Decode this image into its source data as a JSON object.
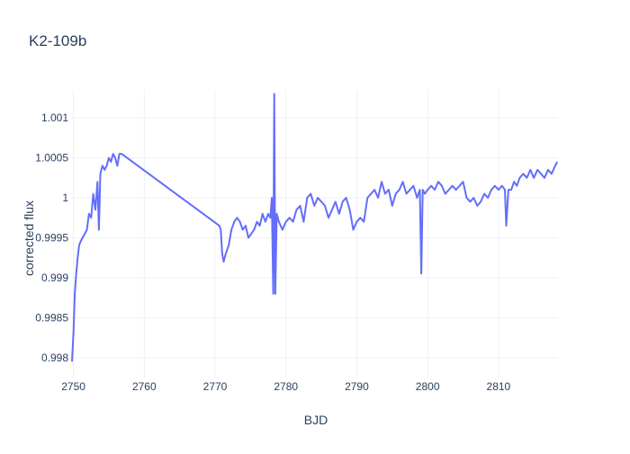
{
  "chart_data": {
    "type": "line",
    "title": "K2-109b",
    "xlabel": "BJD",
    "ylabel": "corrected flux",
    "xlim": [
      2749.8,
      2818.4
    ],
    "ylim": [
      0.99775,
      1.00135
    ],
    "xticks": [
      2750,
      2760,
      2770,
      2780,
      2790,
      2800,
      2810
    ],
    "xtick_labels": [
      "2750",
      "2760",
      "2770",
      "2780",
      "2790",
      "2800",
      "2810"
    ],
    "yticks": [
      0.998,
      0.9985,
      0.999,
      0.9995,
      1.0,
      1.0005,
      1.001
    ],
    "ytick_labels": [
      "0.998",
      "0.9985",
      "0.999",
      "0.9995",
      "1",
      "1.0005",
      "1.001"
    ],
    "grid": true,
    "series": [
      {
        "color": "#636efa",
        "x": [
          2749.8,
          2750.0,
          2750.2,
          2750.4,
          2750.6,
          2750.8,
          2751.0,
          2751.3,
          2751.6,
          2751.9,
          2752.2,
          2752.5,
          2752.8,
          2753.1,
          2753.4,
          2753.6,
          2753.8,
          2754.1,
          2754.4,
          2754.7,
          2755.0,
          2755.3,
          2755.6,
          2755.9,
          2756.2,
          2756.5,
          2756.8,
          2770.6,
          2770.8,
          2771.0,
          2771.2,
          2771.5,
          2771.9,
          2772.3,
          2772.7,
          2773.1,
          2773.5,
          2773.9,
          2774.3,
          2774.7,
          2775.1,
          2775.5,
          2775.9,
          2776.3,
          2776.7,
          2777.1,
          2777.5,
          2777.8,
          2778.0,
          2778.2,
          2778.35,
          2778.5,
          2778.7,
          2779.0,
          2779.5,
          2780.0,
          2780.5,
          2781.0,
          2781.5,
          2782.0,
          2782.5,
          2783.0,
          2783.5,
          2784.0,
          2784.5,
          2785.0,
          2785.5,
          2786.0,
          2786.5,
          2787.0,
          2787.5,
          2788.0,
          2788.5,
          2789.0,
          2789.5,
          2790.0,
          2790.5,
          2791.0,
          2791.5,
          2792.0,
          2792.5,
          2793.0,
          2793.5,
          2794.0,
          2794.5,
          2795.0,
          2795.5,
          2796.0,
          2796.5,
          2797.0,
          2797.5,
          2798.0,
          2798.5,
          2798.9,
          2799.1,
          2799.3,
          2799.6,
          2800.0,
          2800.5,
          2801.0,
          2801.5,
          2802.0,
          2802.5,
          2803.0,
          2803.5,
          2804.0,
          2804.5,
          2805.0,
          2805.5,
          2806.0,
          2806.5,
          2807.0,
          2807.5,
          2808.0,
          2808.5,
          2809.0,
          2809.5,
          2810.0,
          2810.5,
          2810.9,
          2811.1,
          2811.4,
          2811.8,
          2812.2,
          2812.6,
          2813.0,
          2813.5,
          2814.0,
          2814.5,
          2815.0,
          2815.5,
          2816.0,
          2816.5,
          2817.0,
          2817.5,
          2818.0,
          2818.3
        ],
        "y": [
          0.99795,
          0.9983,
          0.9988,
          0.99905,
          0.99925,
          0.9994,
          0.99945,
          0.9995,
          0.99955,
          0.9996,
          0.9998,
          0.99975,
          1.00005,
          0.99985,
          1.0002,
          0.9996,
          1.0003,
          1.0004,
          1.00035,
          1.0004,
          1.0005,
          1.00045,
          1.00055,
          1.0005,
          1.0004,
          1.00055,
          1.00055,
          0.99965,
          0.9996,
          0.9993,
          0.9992,
          0.9993,
          0.9994,
          0.9996,
          0.9997,
          0.99975,
          0.9997,
          0.9996,
          0.99965,
          0.9995,
          0.99955,
          0.9996,
          0.9997,
          0.99965,
          0.9998,
          0.9997,
          0.9998,
          0.99975,
          1.0,
          0.9988,
          1.0013,
          0.9988,
          0.9998,
          0.9997,
          0.9996,
          0.9997,
          0.99975,
          0.9997,
          0.99985,
          0.9999,
          0.9997,
          1.0,
          1.00005,
          0.9999,
          1.0,
          0.99995,
          0.9999,
          0.99975,
          0.99985,
          0.99995,
          0.9998,
          0.99995,
          1.0,
          0.99985,
          0.9996,
          0.9997,
          0.99975,
          0.9997,
          1.0,
          1.00005,
          1.0001,
          1.0,
          1.0002,
          1.00005,
          1.0001,
          0.9999,
          1.00005,
          1.0001,
          1.0002,
          1.00005,
          1.0001,
          1.00015,
          1.0,
          1.0001,
          0.99905,
          1.0001,
          1.00005,
          1.0001,
          1.00015,
          1.0001,
          1.0002,
          1.00015,
          1.00005,
          1.0001,
          1.00015,
          1.0001,
          1.00015,
          1.0002,
          1.0,
          0.99995,
          1.0,
          0.9999,
          0.99995,
          1.00005,
          1.0,
          1.0001,
          1.00015,
          1.0001,
          1.00015,
          1.0001,
          0.99965,
          1.0001,
          1.0001,
          1.0002,
          1.00015,
          1.00025,
          1.0003,
          1.00025,
          1.00035,
          1.00025,
          1.00035,
          1.0003,
          1.00025,
          1.00035,
          1.0003,
          1.0004,
          1.00045
        ]
      }
    ]
  }
}
